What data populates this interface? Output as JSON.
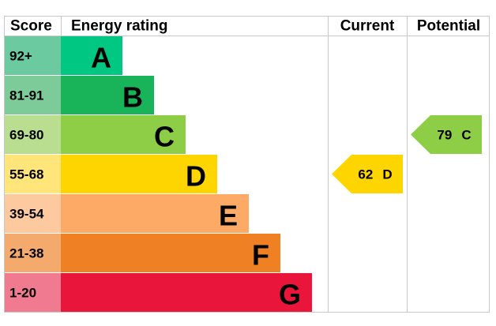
{
  "header": {
    "score": "Score",
    "rating": "Energy rating",
    "current": "Current",
    "potential": "Potential"
  },
  "bands": [
    {
      "score": "92+",
      "rating": "A",
      "color": "#00c781",
      "score_color": "#6ccaa0"
    },
    {
      "score": "81-91",
      "rating": "B",
      "color": "#19b459",
      "score_color": "#7ccb98"
    },
    {
      "score": "69-80",
      "rating": "C",
      "color": "#8dce46",
      "score_color": "#b9de90"
    },
    {
      "score": "55-68",
      "rating": "D",
      "color": "#ffd500",
      "score_color": "#ffe57a"
    },
    {
      "score": "39-54",
      "rating": "E",
      "color": "#fcaa65",
      "score_color": "#fdcaa0"
    },
    {
      "score": "21-38",
      "rating": "F",
      "color": "#ef8023",
      "score_color": "#f4aa6c"
    },
    {
      "score": "1-20",
      "rating": "G",
      "color": "#e9153b",
      "score_color": "#f07a8f"
    }
  ],
  "current": {
    "score": 62,
    "rating": "D"
  },
  "potential": {
    "score": 79,
    "rating": "C"
  }
}
